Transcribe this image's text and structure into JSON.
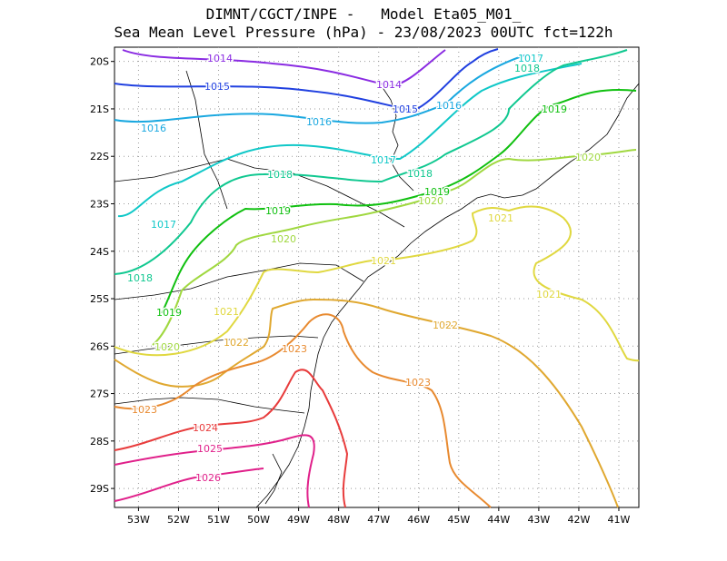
{
  "title": {
    "line1": "DIMNT/CGCT/INPE -   Model Eta05_M01_",
    "line2": "Sea Mean Level Pressure (hPa) - 23/08/2023 00UTC fct=122h"
  },
  "map": {
    "lon_range": [
      -53.6,
      -40.5
    ],
    "lat_range": [
      -29.4,
      -19.7
    ],
    "lon_ticks": [
      "53W",
      "52W",
      "51W",
      "50W",
      "49W",
      "48W",
      "47W",
      "46W",
      "45W",
      "44W",
      "43W",
      "42W",
      "41W"
    ],
    "lat_ticks": [
      "20S",
      "21S",
      "22S",
      "23S",
      "24S",
      "25S",
      "26S",
      "27S",
      "28S",
      "29S"
    ],
    "grid": "dotted"
  },
  "contours": [
    {
      "label": "1014",
      "color": "#8a2be2"
    },
    {
      "label": "1015",
      "color": "#2040e0"
    },
    {
      "label": "1016",
      "color": "#1aa8e0"
    },
    {
      "label": "1017",
      "color": "#10c8c8"
    },
    {
      "label": "1018",
      "color": "#10c890"
    },
    {
      "label": "1019",
      "color": "#10c010"
    },
    {
      "label": "1020",
      "color": "#a0d840"
    },
    {
      "label": "1021",
      "color": "#e0d840"
    },
    {
      "label": "1022",
      "color": "#e0a830"
    },
    {
      "label": "1023",
      "color": "#e88a30"
    },
    {
      "label": "1024",
      "color": "#e83c3c"
    },
    {
      "label": "1025",
      "color": "#e0208a"
    },
    {
      "label": "1026",
      "color": "#e0208a"
    }
  ]
}
